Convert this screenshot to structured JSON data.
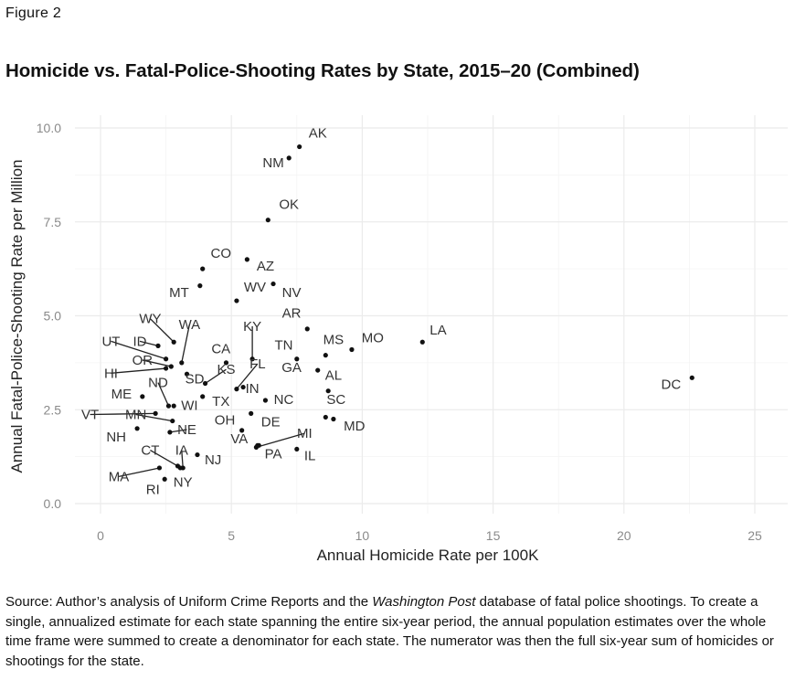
{
  "figure_label": "Figure 2",
  "title": "Homicide vs. Fatal-Police-Shooting Rates by State, 2015–20 (Combined)",
  "caption": {
    "before_italic": "Source: Author’s analysis of Uniform Crime Reports and the ",
    "italic": "Washington Post",
    "after_italic": " database of fatal police shootings. To create a single, annualized estimate for each state spanning the entire six-year period, the annual population estimates over the whole time frame were summed to create a denominator for each state. The numerator was then the full six-year sum of homicides or shootings for the state."
  },
  "chart_data": {
    "type": "scatter",
    "title": "Homicide vs. Fatal-Police-Shooting Rates by State, 2015–20 (Combined)",
    "xlabel": "Annual Homicide Rate per 100K",
    "ylabel": "Annual Fatal-Police-Shooting Rate per Million",
    "xlim": [
      -1,
      26.3
    ],
    "ylim": [
      -0.2,
      10.4
    ],
    "x_ticks": [
      0,
      5,
      10,
      15,
      20,
      25
    ],
    "x_tick_labels": [
      "0",
      "5",
      "10",
      "15",
      "20",
      "25"
    ],
    "y_ticks": [
      0,
      2.5,
      5,
      7.5,
      10
    ],
    "y_tick_labels": [
      "0.0",
      "2.5",
      "5.0",
      "7.5",
      "10.0"
    ],
    "grid": true,
    "legend": "none",
    "points": [
      {
        "label": "AK",
        "x": 7.6,
        "y": 9.5,
        "lx": 8.3,
        "ly": 9.75
      },
      {
        "label": "NM",
        "x": 7.2,
        "y": 9.2,
        "lx": 6.6,
        "ly": 8.95
      },
      {
        "label": "OK",
        "x": 6.4,
        "y": 7.55,
        "lx": 7.2,
        "ly": 7.85
      },
      {
        "label": "CO",
        "x": 3.9,
        "y": 6.25,
        "lx": 4.6,
        "ly": 6.55
      },
      {
        "label": "AZ",
        "x": 5.6,
        "y": 6.5,
        "lx": 6.3,
        "ly": 6.2
      },
      {
        "label": "MT",
        "x": 3.8,
        "y": 5.8,
        "lx": 3.0,
        "ly": 5.5
      },
      {
        "label": "WV",
        "x": 5.2,
        "y": 5.4,
        "lx": 5.9,
        "ly": 5.65
      },
      {
        "label": "NV",
        "x": 6.6,
        "y": 5.85,
        "lx": 7.3,
        "ly": 5.5
      },
      {
        "label": "AR",
        "x": 7.9,
        "y": 4.65,
        "lx": 7.3,
        "ly": 4.95
      },
      {
        "label": "WY",
        "x": 2.8,
        "y": 4.3,
        "lx": 1.9,
        "ly": 4.8
      },
      {
        "label": "WA",
        "x": 3.1,
        "y": 3.75,
        "lx": 3.4,
        "ly": 4.65
      },
      {
        "label": "UT",
        "x": 2.5,
        "y": 3.85,
        "lx": 0.4,
        "ly": 4.2
      },
      {
        "label": "ID",
        "x": 2.2,
        "y": 4.2,
        "lx": 1.5,
        "ly": 4.2
      },
      {
        "label": "OR",
        "x": 2.7,
        "y": 3.65,
        "lx": 1.6,
        "ly": 3.7
      },
      {
        "label": "HI",
        "x": 2.5,
        "y": 3.6,
        "lx": 0.4,
        "ly": 3.35
      },
      {
        "label": "KY",
        "x": 5.8,
        "y": 3.85,
        "lx": 5.8,
        "ly": 4.6
      },
      {
        "label": "CA",
        "x": 4.8,
        "y": 3.75,
        "lx": 4.6,
        "ly": 4.0
      },
      {
        "label": "TN",
        "x": 7.5,
        "y": 3.85,
        "lx": 7.0,
        "ly": 4.1
      },
      {
        "label": "MS",
        "x": 8.6,
        "y": 3.95,
        "lx": 8.9,
        "ly": 4.25
      },
      {
        "label": "MO",
        "x": 9.6,
        "y": 4.1,
        "lx": 10.4,
        "ly": 4.3
      },
      {
        "label": "LA",
        "x": 12.3,
        "y": 4.3,
        "lx": 12.9,
        "ly": 4.5
      },
      {
        "label": "SD",
        "x": 3.3,
        "y": 3.45,
        "lx": 3.6,
        "ly": 3.2
      },
      {
        "label": "KS",
        "x": 4.0,
        "y": 3.2,
        "lx": 4.8,
        "ly": 3.45
      },
      {
        "label": "FL",
        "x": 5.2,
        "y": 3.05,
        "lx": 6.0,
        "ly": 3.6
      },
      {
        "label": "GA",
        "x": 8.3,
        "y": 3.55,
        "lx": 7.3,
        "ly": 3.5
      },
      {
        "label": "AL",
        "x": 8.7,
        "y": 3.0,
        "lx": 8.9,
        "ly": 3.3
      },
      {
        "label": "ND",
        "x": 2.6,
        "y": 2.6,
        "lx": 2.2,
        "ly": 3.1
      },
      {
        "label": "ME",
        "x": 1.6,
        "y": 2.85,
        "lx": 0.8,
        "ly": 2.8
      },
      {
        "label": "IN",
        "x": 5.45,
        "y": 3.1,
        "lx": 5.8,
        "ly": 2.95
      },
      {
        "label": "TX",
        "x": 3.9,
        "y": 2.85,
        "lx": 4.6,
        "ly": 2.6
      },
      {
        "label": "WI",
        "x": 2.8,
        "y": 2.6,
        "lx": 3.4,
        "ly": 2.5
      },
      {
        "label": "NC",
        "x": 6.3,
        "y": 2.75,
        "lx": 7.0,
        "ly": 2.65
      },
      {
        "label": "SC",
        "x": 8.6,
        "y": 2.3,
        "lx": 9.0,
        "ly": 2.65
      },
      {
        "label": "VT",
        "x": 2.1,
        "y": 2.4,
        "lx": -0.4,
        "ly": 2.25
      },
      {
        "label": "MN",
        "x": 2.75,
        "y": 2.2,
        "lx": 1.35,
        "ly": 2.25
      },
      {
        "label": "OH",
        "x": 5.4,
        "y": 1.95,
        "lx": 4.75,
        "ly": 2.1
      },
      {
        "label": "DE",
        "x": 5.75,
        "y": 2.4,
        "lx": 6.5,
        "ly": 2.05
      },
      {
        "label": "MD",
        "x": 8.9,
        "y": 2.25,
        "lx": 9.7,
        "ly": 1.95
      },
      {
        "label": "NH",
        "x": 1.4,
        "y": 2.0,
        "lx": 0.6,
        "ly": 1.65
      },
      {
        "label": "NE",
        "x": 2.65,
        "y": 1.9,
        "lx": 3.3,
        "ly": 1.85
      },
      {
        "label": "VA",
        "x": 6.0,
        "y": 1.55,
        "lx": 5.3,
        "ly": 1.6
      },
      {
        "label": "MI",
        "x": 5.95,
        "y": 1.5,
        "lx": 7.8,
        "ly": 1.75
      },
      {
        "label": "PA",
        "x": 6.05,
        "y": 1.55,
        "lx": 6.6,
        "ly": 1.2
      },
      {
        "label": "IL",
        "x": 7.5,
        "y": 1.45,
        "lx": 8.0,
        "ly": 1.15
      },
      {
        "label": "IA",
        "x": 3.15,
        "y": 0.95,
        "lx": 3.1,
        "ly": 1.3
      },
      {
        "label": "CT",
        "x": 2.95,
        "y": 1.0,
        "lx": 1.9,
        "ly": 1.3
      },
      {
        "label": "NJ",
        "x": 3.7,
        "y": 1.3,
        "lx": 4.3,
        "ly": 1.05
      },
      {
        "label": "MA",
        "x": 2.25,
        "y": 0.95,
        "lx": 0.7,
        "ly": 0.6
      },
      {
        "label": "RI",
        "x": 2.45,
        "y": 0.65,
        "lx": 2.0,
        "ly": 0.25
      },
      {
        "label": "NY",
        "x": 3.05,
        "y": 0.95,
        "lx": 3.15,
        "ly": 0.45
      },
      {
        "label": "DC",
        "x": 22.6,
        "y": 3.35,
        "lx": 21.8,
        "ly": 3.05
      }
    ],
    "leader_lines": [
      "WY",
      "WA",
      "UT",
      "ID",
      "OR",
      "HI",
      "KY",
      "KS",
      "FL",
      "ND",
      "VT",
      "MN",
      "NE",
      "MI",
      "MA",
      "CT",
      "IA"
    ]
  }
}
